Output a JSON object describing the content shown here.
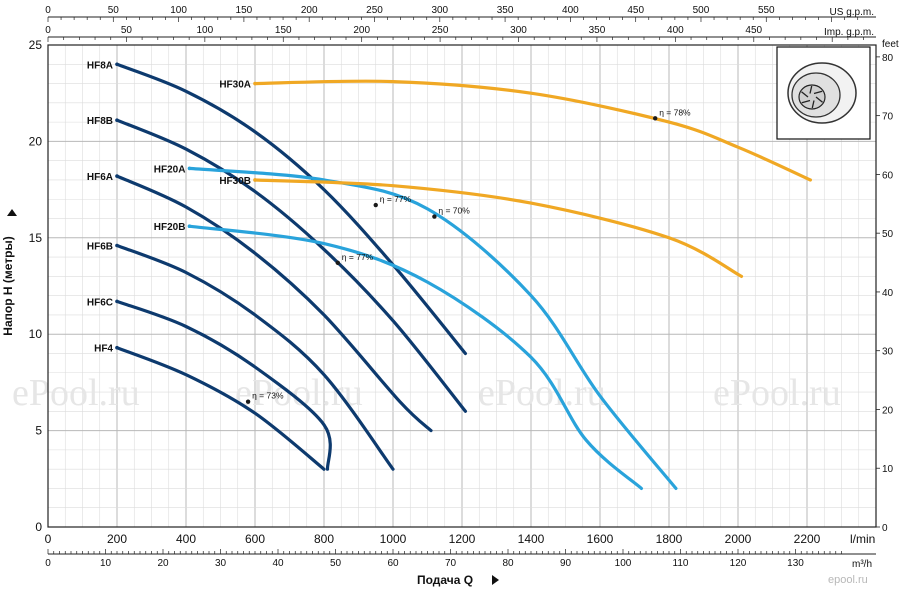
{
  "chart_data": {
    "type": "line",
    "x_axis": {
      "label": "Подача Q",
      "unit": "l/min",
      "range": [
        0,
        2400
      ],
      "ticks": [
        0,
        200,
        400,
        600,
        800,
        1000,
        1200,
        1400,
        1600,
        1800,
        2000,
        2200
      ]
    },
    "x_axis_m3h": {
      "unit": "m³/h",
      "ticks": [
        0,
        10,
        20,
        30,
        40,
        50,
        60,
        70,
        80,
        90,
        100,
        110,
        120,
        130
      ]
    },
    "top_axis_us": {
      "label": "US g.p.m.",
      "ticks": [
        0,
        50,
        100,
        150,
        200,
        250,
        300,
        350,
        400,
        450,
        500,
        550
      ]
    },
    "top_axis_imp": {
      "label": "Imp. g.p.m.",
      "ticks": [
        0,
        50,
        100,
        150,
        200,
        250,
        300,
        350,
        400,
        450
      ]
    },
    "y_axis": {
      "label": "Напор Н (метры)",
      "range": [
        0,
        25
      ],
      "ticks": [
        0,
        5,
        10,
        15,
        20,
        25
      ]
    },
    "y_axis_right": {
      "label": "feet",
      "ticks": [
        0,
        10,
        20,
        30,
        40,
        50,
        60,
        70,
        80
      ]
    },
    "grid": true,
    "series": [
      {
        "name": "HF8A",
        "color": "#0d3a6e",
        "points": [
          [
            200,
            24
          ],
          [
            400,
            22.6
          ],
          [
            600,
            20.5
          ],
          [
            800,
            17.5
          ],
          [
            1000,
            13.6
          ],
          [
            1210,
            9
          ]
        ]
      },
      {
        "name": "HF8B",
        "color": "#0d3a6e",
        "points": [
          [
            200,
            21.1
          ],
          [
            400,
            19.6
          ],
          [
            600,
            17.4
          ],
          [
            800,
            14.4
          ],
          [
            1000,
            10.7
          ],
          [
            1210,
            6
          ]
        ]
      },
      {
        "name": "HF6A",
        "color": "#0d3a6e",
        "points": [
          [
            200,
            18.2
          ],
          [
            400,
            16.6
          ],
          [
            600,
            14.2
          ],
          [
            800,
            11
          ],
          [
            1020,
            6.5
          ],
          [
            1110,
            5
          ]
        ]
      },
      {
        "name": "HF6B",
        "color": "#0d3a6e",
        "points": [
          [
            200,
            14.6
          ],
          [
            400,
            13.2
          ],
          [
            600,
            11
          ],
          [
            800,
            7.9
          ],
          [
            1000,
            3
          ]
        ]
      },
      {
        "name": "HF6C",
        "color": "#0d3a6e",
        "points": [
          [
            200,
            11.7
          ],
          [
            400,
            10.4
          ],
          [
            600,
            8.3
          ],
          [
            800,
            5.3
          ],
          [
            810,
            3
          ]
        ]
      },
      {
        "name": "HF4",
        "color": "#0d3a6e",
        "points": [
          [
            200,
            9.3
          ],
          [
            400,
            7.9
          ],
          [
            600,
            5.9
          ],
          [
            800,
            3
          ]
        ]
      },
      {
        "name": "HF20A",
        "color": "#29a3db",
        "points": [
          [
            410,
            18.6
          ],
          [
            800,
            18
          ],
          [
            1100,
            16.5
          ],
          [
            1400,
            12
          ],
          [
            1600,
            6.8
          ],
          [
            1820,
            2
          ]
        ]
      },
      {
        "name": "HF20B",
        "color": "#29a3db",
        "points": [
          [
            410,
            15.6
          ],
          [
            800,
            14.7
          ],
          [
            1100,
            12.7
          ],
          [
            1400,
            8.8
          ],
          [
            1560,
            4.5
          ],
          [
            1720,
            2
          ]
        ]
      },
      {
        "name": "HF30A",
        "color": "#f0a824",
        "points": [
          [
            600,
            23
          ],
          [
            1000,
            23.1
          ],
          [
            1400,
            22.5
          ],
          [
            1800,
            21
          ],
          [
            2000,
            19.7
          ],
          [
            2210,
            18
          ]
        ]
      },
      {
        "name": "HF30B",
        "color": "#f0a824",
        "points": [
          [
            600,
            18
          ],
          [
            1000,
            17.7
          ],
          [
            1400,
            16.8
          ],
          [
            1800,
            15
          ],
          [
            2010,
            13
          ]
        ]
      }
    ],
    "annotations": [
      {
        "text": "η = 78%",
        "x": 1760,
        "y": 21.2
      },
      {
        "text": "η = 77%",
        "x": 950,
        "y": 16.7
      },
      {
        "text": "η = 70%",
        "x": 1120,
        "y": 16.1
      },
      {
        "text": "η = 77%",
        "x": 840,
        "y": 13.7
      },
      {
        "text": "η = 73%",
        "x": 580,
        "y": 6.5
      }
    ]
  },
  "watermark": "ePool.ru",
  "brand": "epool.ru",
  "colors": {
    "dark_blue": "#0d3a6e",
    "light_blue": "#29a3db",
    "orange": "#f0a824",
    "grid": "#c9c9c9"
  },
  "icon": "pump-impeller-image"
}
